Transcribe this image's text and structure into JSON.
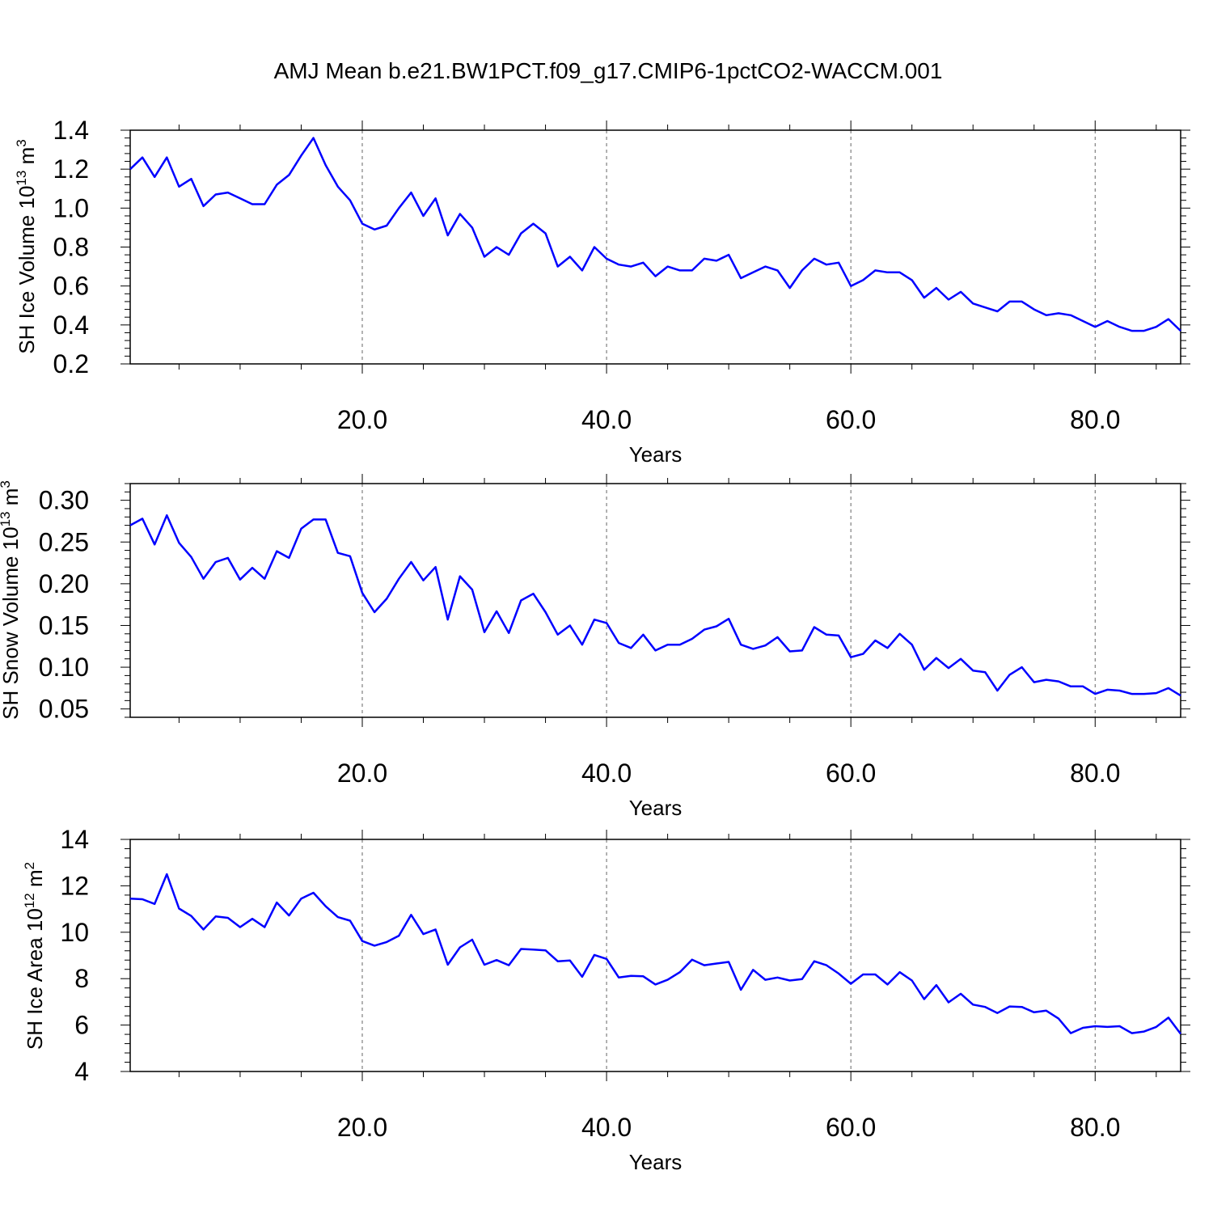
{
  "figure": {
    "title": "AMJ Mean b.e21.BW1PCT.f09_g17.CMIP6-1pctCO2-WACCM.001"
  },
  "colors": {
    "line": "#0000ff",
    "axis": "#000000",
    "grid": "#666666"
  },
  "chart_data": [
    {
      "type": "line",
      "xlabel": "Years",
      "ylabel": "SH Ice Volume 10",
      "ylabel_exponent": "13",
      "ylabel_unit": "m",
      "ylabel_unit_exponent": "3",
      "xlim": [
        1,
        87
      ],
      "ylim": [
        0.2,
        1.4
      ],
      "xticks": [
        20,
        40,
        60,
        80
      ],
      "xtick_labels": [
        "20.0",
        "40.0",
        "60.0",
        "80.0"
      ],
      "yticks": [
        0.2,
        0.4,
        0.6,
        0.8,
        1.0,
        1.2,
        1.4
      ],
      "ytick_labels": [
        "0.2",
        "0.4",
        "0.6",
        "0.8",
        "1.0",
        "1.2",
        "1.4"
      ],
      "grid": "vertical dashed at major x ticks",
      "series": [
        {
          "x": [
            1,
            2,
            3,
            4,
            5,
            6,
            7,
            8,
            9,
            10,
            11,
            12,
            13,
            14,
            15,
            16,
            17,
            18,
            19,
            20,
            21,
            22,
            23,
            24,
            25,
            26,
            27,
            28,
            29,
            30,
            31,
            32,
            33,
            34,
            35,
            36,
            37,
            38,
            39,
            40,
            41,
            42,
            43,
            44,
            45,
            46,
            47,
            48,
            49,
            50,
            51,
            52,
            53,
            54,
            55,
            56,
            57,
            58,
            59,
            60,
            61,
            62,
            63,
            64,
            65,
            66,
            67,
            68,
            69,
            70,
            71,
            72,
            73,
            74,
            75,
            76,
            77,
            78,
            79,
            80,
            81,
            82,
            83,
            84,
            85,
            86,
            87
          ],
          "values": [
            1.2,
            1.26,
            1.16,
            1.26,
            1.11,
            1.15,
            1.01,
            1.07,
            1.08,
            1.05,
            1.02,
            1.02,
            1.12,
            1.17,
            1.27,
            1.36,
            1.22,
            1.11,
            1.04,
            0.92,
            0.89,
            0.91,
            1.0,
            1.08,
            0.96,
            1.05,
            0.86,
            0.97,
            0.9,
            0.75,
            0.8,
            0.76,
            0.87,
            0.92,
            0.87,
            0.7,
            0.75,
            0.68,
            0.8,
            0.74,
            0.71,
            0.7,
            0.72,
            0.65,
            0.7,
            0.68,
            0.68,
            0.74,
            0.73,
            0.76,
            0.64,
            0.67,
            0.7,
            0.68,
            0.59,
            0.68,
            0.74,
            0.71,
            0.72,
            0.6,
            0.63,
            0.68,
            0.67,
            0.67,
            0.63,
            0.54,
            0.59,
            0.53,
            0.57,
            0.51,
            0.49,
            0.47,
            0.52,
            0.52,
            0.48,
            0.45,
            0.46,
            0.45,
            0.42,
            0.39,
            0.42,
            0.39,
            0.37,
            0.37,
            0.39,
            0.43,
            0.37
          ]
        }
      ]
    },
    {
      "type": "line",
      "xlabel": "Years",
      "ylabel": "SH Snow Volume 10",
      "ylabel_exponent": "13",
      "ylabel_unit": "m",
      "ylabel_unit_exponent": "3",
      "xlim": [
        1,
        87
      ],
      "ylim": [
        0.04,
        0.32
      ],
      "xticks": [
        20,
        40,
        60,
        80
      ],
      "xtick_labels": [
        "20.0",
        "40.0",
        "60.0",
        "80.0"
      ],
      "yticks": [
        0.05,
        0.1,
        0.15,
        0.2,
        0.25,
        0.3
      ],
      "ytick_labels": [
        "0.05",
        "0.10",
        "0.15",
        "0.20",
        "0.25",
        "0.30"
      ],
      "grid": "vertical dashed at major x ticks",
      "series": [
        {
          "x": [
            1,
            2,
            3,
            4,
            5,
            6,
            7,
            8,
            9,
            10,
            11,
            12,
            13,
            14,
            15,
            16,
            17,
            18,
            19,
            20,
            21,
            22,
            23,
            24,
            25,
            26,
            27,
            28,
            29,
            30,
            31,
            32,
            33,
            34,
            35,
            36,
            37,
            38,
            39,
            40,
            41,
            42,
            43,
            44,
            45,
            46,
            47,
            48,
            49,
            50,
            51,
            52,
            53,
            54,
            55,
            56,
            57,
            58,
            59,
            60,
            61,
            62,
            63,
            64,
            65,
            66,
            67,
            68,
            69,
            70,
            71,
            72,
            73,
            74,
            75,
            76,
            77,
            78,
            79,
            80,
            81,
            82,
            83,
            84,
            85,
            86,
            87
          ],
          "values": [
            0.27,
            0.278,
            0.247,
            0.282,
            0.249,
            0.232,
            0.206,
            0.226,
            0.231,
            0.205,
            0.219,
            0.206,
            0.239,
            0.231,
            0.266,
            0.277,
            0.277,
            0.237,
            0.233,
            0.189,
            0.166,
            0.182,
            0.206,
            0.226,
            0.204,
            0.22,
            0.157,
            0.209,
            0.193,
            0.142,
            0.167,
            0.141,
            0.18,
            0.188,
            0.166,
            0.139,
            0.15,
            0.127,
            0.157,
            0.153,
            0.129,
            0.123,
            0.139,
            0.12,
            0.127,
            0.127,
            0.134,
            0.145,
            0.149,
            0.158,
            0.127,
            0.122,
            0.126,
            0.136,
            0.119,
            0.12,
            0.148,
            0.139,
            0.138,
            0.112,
            0.116,
            0.132,
            0.123,
            0.14,
            0.127,
            0.097,
            0.111,
            0.099,
            0.11,
            0.096,
            0.094,
            0.072,
            0.091,
            0.1,
            0.082,
            0.085,
            0.083,
            0.077,
            0.077,
            0.068,
            0.073,
            0.072,
            0.068,
            0.068,
            0.069,
            0.075,
            0.066
          ]
        }
      ]
    },
    {
      "type": "line",
      "xlabel": "Years",
      "ylabel": "SH Ice Area 10",
      "ylabel_exponent": "12",
      "ylabel_unit": "m",
      "ylabel_unit_exponent": "2",
      "xlim": [
        1,
        87
      ],
      "ylim": [
        4,
        14
      ],
      "xticks": [
        20,
        40,
        60,
        80
      ],
      "xtick_labels": [
        "20.0",
        "40.0",
        "60.0",
        "80.0"
      ],
      "yticks": [
        4,
        6,
        8,
        10,
        12,
        14
      ],
      "ytick_labels": [
        "4",
        "6",
        "8",
        "10",
        "12",
        "14"
      ],
      "grid": "vertical dashed at major x ticks",
      "series": [
        {
          "x": [
            1,
            2,
            3,
            4,
            5,
            6,
            7,
            8,
            9,
            10,
            11,
            12,
            13,
            14,
            15,
            16,
            17,
            18,
            19,
            20,
            21,
            22,
            23,
            24,
            25,
            26,
            27,
            28,
            29,
            30,
            31,
            32,
            33,
            34,
            35,
            36,
            37,
            38,
            39,
            40,
            41,
            42,
            43,
            44,
            45,
            46,
            47,
            48,
            49,
            50,
            51,
            52,
            53,
            54,
            55,
            56,
            57,
            58,
            59,
            60,
            61,
            62,
            63,
            64,
            65,
            66,
            67,
            68,
            69,
            70,
            71,
            72,
            73,
            74,
            75,
            76,
            77,
            78,
            79,
            80,
            81,
            82,
            83,
            84,
            85,
            86,
            87
          ],
          "values": [
            11.45,
            11.42,
            11.22,
            12.5,
            11.02,
            10.7,
            10.12,
            10.68,
            10.62,
            10.22,
            10.58,
            10.22,
            11.28,
            10.72,
            11.45,
            11.7,
            11.12,
            10.65,
            10.5,
            9.62,
            9.42,
            9.58,
            9.85,
            10.75,
            9.92,
            10.12,
            8.6,
            9.35,
            9.68,
            8.6,
            8.8,
            8.58,
            9.28,
            9.25,
            9.22,
            8.75,
            8.78,
            8.08,
            9.02,
            8.85,
            8.05,
            8.12,
            8.1,
            7.75,
            7.95,
            8.28,
            8.82,
            8.58,
            8.65,
            8.72,
            7.52,
            8.38,
            7.95,
            8.05,
            7.92,
            7.98,
            8.75,
            8.58,
            8.22,
            7.78,
            8.18,
            8.18,
            7.75,
            8.28,
            7.92,
            7.12,
            7.72,
            6.98,
            7.35,
            6.88,
            6.78,
            6.52,
            6.8,
            6.78,
            6.55,
            6.62,
            6.28,
            5.65,
            5.88,
            5.95,
            5.92,
            5.95,
            5.65,
            5.72,
            5.92,
            6.32,
            5.62
          ]
        }
      ]
    }
  ]
}
